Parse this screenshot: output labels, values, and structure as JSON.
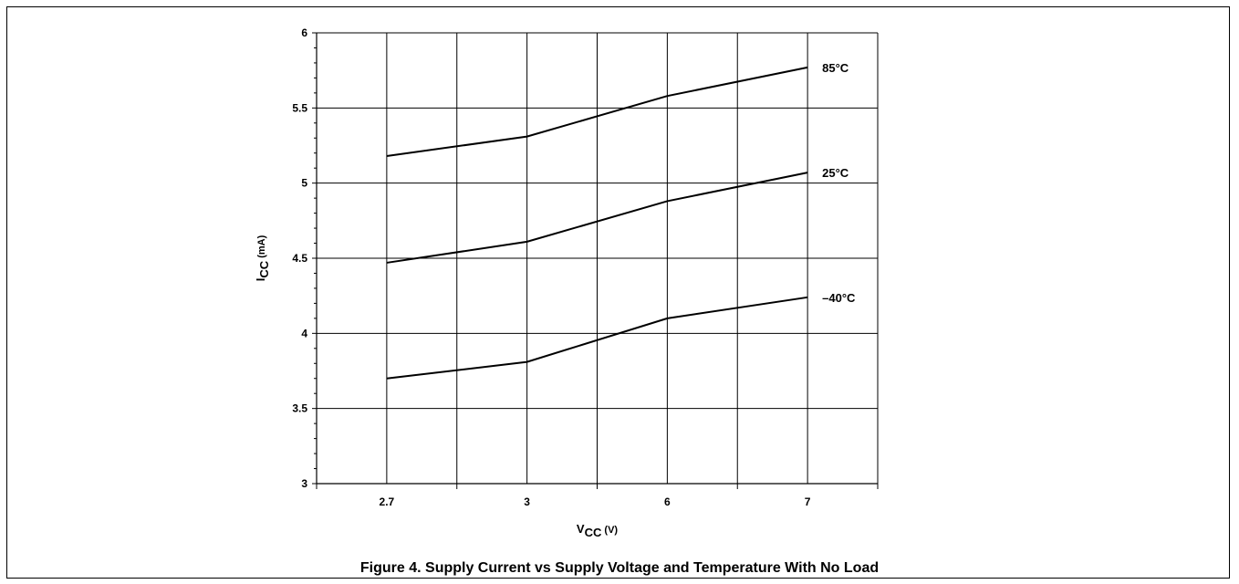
{
  "figure": {
    "caption": "Figure 4.  Supply Current vs Supply Voltage and Temperature With No Load"
  },
  "chart_data": {
    "type": "line",
    "xlabel": {
      "main": "V",
      "sub": "CC",
      "unit": " (V)"
    },
    "ylabel": {
      "main": "I",
      "sub": "CC",
      "unit": " (mA)"
    },
    "categories": [
      "2.7",
      "3",
      "6",
      "7"
    ],
    "ylim": [
      3,
      6
    ],
    "yticks": [
      "3",
      "3.5",
      "4",
      "4.5",
      "5",
      "5.5",
      "6"
    ],
    "grid": true,
    "series": [
      {
        "name": "85°C",
        "values": [
          5.18,
          5.31,
          5.58,
          5.77
        ]
      },
      {
        "name": "25°C",
        "values": [
          4.47,
          4.61,
          4.88,
          5.07
        ]
      },
      {
        "name": "–40°C",
        "values": [
          3.7,
          3.81,
          4.1,
          4.24
        ]
      }
    ]
  }
}
